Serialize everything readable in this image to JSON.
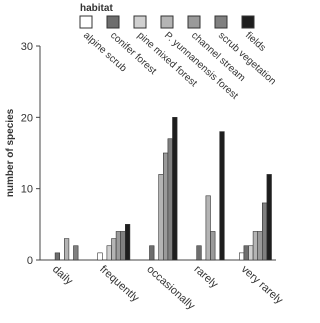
{
  "chart_data": {
    "type": "bar",
    "legend_title": "habitat",
    "ylabel": "number of species",
    "categories": [
      "daily",
      "frequently",
      "occasionally",
      "rarely",
      "very rarely"
    ],
    "series": [
      {
        "name": "alpine scrub",
        "color": "#ffffff",
        "values": [
          0,
          1,
          0,
          0,
          1
        ]
      },
      {
        "name": "conifer forest",
        "color": "#6e6e6e",
        "values": [
          1,
          0,
          2,
          2,
          2
        ]
      },
      {
        "name": "pine mixed forest",
        "color": "#d0d0d0",
        "values": [
          0,
          2,
          0,
          0,
          2
        ]
      },
      {
        "name": "P. yunnanensis forest",
        "color": "#b4b4b4",
        "values": [
          3,
          3,
          12,
          9,
          4
        ]
      },
      {
        "name": "channel stream",
        "color": "#9a9a9a",
        "values": [
          0,
          4,
          15,
          4,
          4
        ]
      },
      {
        "name": "scrub vegetation",
        "color": "#808080",
        "values": [
          2,
          4,
          17,
          0,
          8
        ]
      },
      {
        "name": "fields",
        "color": "#1e1e1e",
        "values": [
          0,
          5,
          20,
          18,
          12
        ]
      }
    ],
    "ylim": [
      0,
      30
    ],
    "yticks": [
      0,
      10,
      20,
      30
    ]
  }
}
